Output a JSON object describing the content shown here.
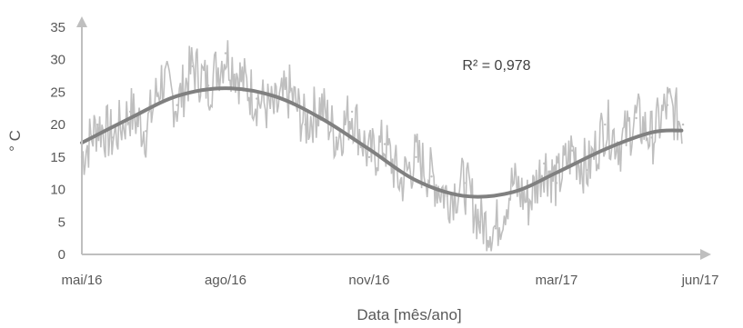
{
  "chart_data": {
    "type": "line",
    "title": "",
    "xlabel": "Data [mês/ano]",
    "ylabel": "° C",
    "ylim": [
      0,
      35
    ],
    "y_ticks": [
      "0",
      "5",
      "10",
      "15",
      "20",
      "25",
      "30",
      "35"
    ],
    "x_ticks": [
      {
        "date": "2016-05-01",
        "label": "mai/16"
      },
      {
        "date": "2016-08-01",
        "label": "ago/16"
      },
      {
        "date": "2016-11-01",
        "label": "nov/16"
      },
      {
        "date": "2017-03-01",
        "label": "mar/17"
      },
      {
        "date": "2017-06-01",
        "label": "jun/17"
      }
    ],
    "xlim": [
      "2016-05-01",
      "2017-06-01"
    ],
    "grid": false,
    "colors": {
      "measured": "#bfbfbf",
      "fit": "#808080",
      "axis": "#bfbfbf"
    },
    "annotation": "R² = 0,978",
    "series": [
      {
        "x": [
          "2016-05-01",
          "2016-05-11",
          "2016-05-21",
          "2016-06-01",
          "2016-06-11",
          "2016-06-21",
          "2016-07-01",
          "2016-07-11",
          "2016-07-21",
          "2016-08-01",
          "2016-08-11",
          "2016-08-21",
          "2016-09-01",
          "2016-09-11",
          "2016-09-21",
          "2016-10-01",
          "2016-10-11",
          "2016-10-21",
          "2016-11-01",
          "2016-11-11",
          "2016-11-21",
          "2016-12-01",
          "2016-12-11",
          "2016-12-21",
          "2017-01-01",
          "2017-01-11",
          "2017-01-21",
          "2017-02-01",
          "2017-02-11",
          "2017-02-21",
          "2017-03-01",
          "2017-03-11",
          "2017-03-21",
          "2017-04-01",
          "2017-04-11",
          "2017-04-21",
          "2017-05-01",
          "2017-05-11",
          "2017-05-21"
        ],
        "y": [
          15,
          20,
          18,
          22,
          19,
          27,
          23,
          29,
          26,
          31,
          27,
          24,
          22,
          25,
          20,
          23,
          18,
          22,
          15,
          17,
          11,
          15,
          12,
          9,
          11,
          5,
          4,
          11,
          8,
          14,
          11,
          16,
          13,
          20,
          17,
          21,
          18,
          23,
          20
        ]
      },
      {
        "x": [
          "2016-05-01",
          "2016-06-01",
          "2016-07-01",
          "2016-08-01",
          "2016-09-01",
          "2016-10-01",
          "2016-11-01",
          "2016-12-01",
          "2017-01-01",
          "2017-02-01",
          "2017-03-01",
          "2017-04-01",
          "2017-05-01",
          "2017-05-20"
        ],
        "y": [
          17.2,
          21.0,
          24.4,
          25.6,
          24.4,
          21.0,
          16.2,
          11.4,
          9.0,
          9.6,
          12.6,
          16.2,
          18.8,
          19.1
        ]
      }
    ]
  }
}
